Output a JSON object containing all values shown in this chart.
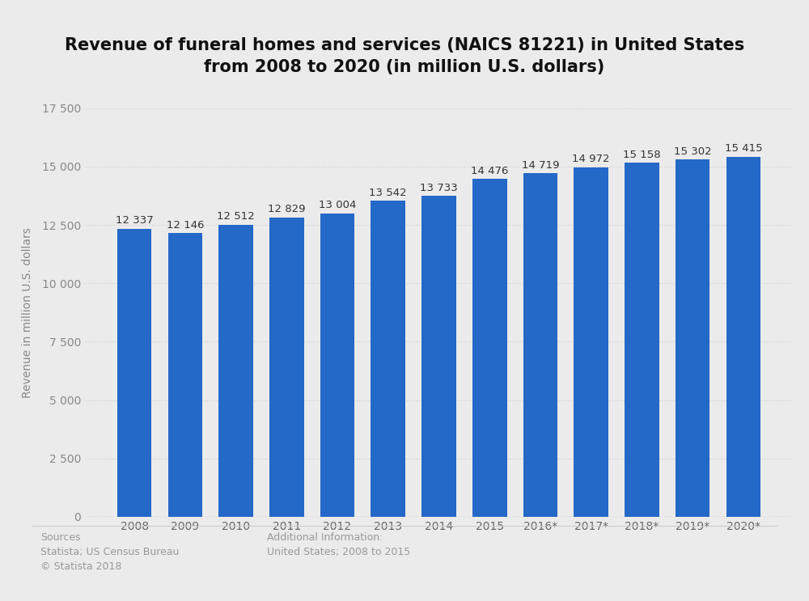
{
  "title": "Revenue of funeral homes and services (NAICS 81221) in United States\nfrom 2008 to 2020 (in million U.S. dollars)",
  "years": [
    "2008",
    "2009",
    "2010",
    "2011",
    "2012",
    "2013",
    "2014",
    "2015",
    "2016*",
    "2017*",
    "2018*",
    "2019*",
    "2020*"
  ],
  "values": [
    12337,
    12146,
    12512,
    12829,
    13004,
    13542,
    13733,
    14476,
    14719,
    14972,
    15158,
    15302,
    15415
  ],
  "bar_color": "#2468c8",
  "ylabel": "Revenue in million U.S. dollars",
  "ylim": [
    0,
    17500
  ],
  "yticks": [
    0,
    2500,
    5000,
    7500,
    10000,
    12500,
    15000,
    17500
  ],
  "background_color": "#ebebeb",
  "plot_bg_color": "#ebebeb",
  "title_fontsize": 15,
  "label_fontsize": 10,
  "sources_text": "Sources\nStatista; US Census Bureau\n© Statista 2018",
  "additional_info": "Additional Information:\nUnited States; 2008 to 2015",
  "footer_fontsize": 9
}
